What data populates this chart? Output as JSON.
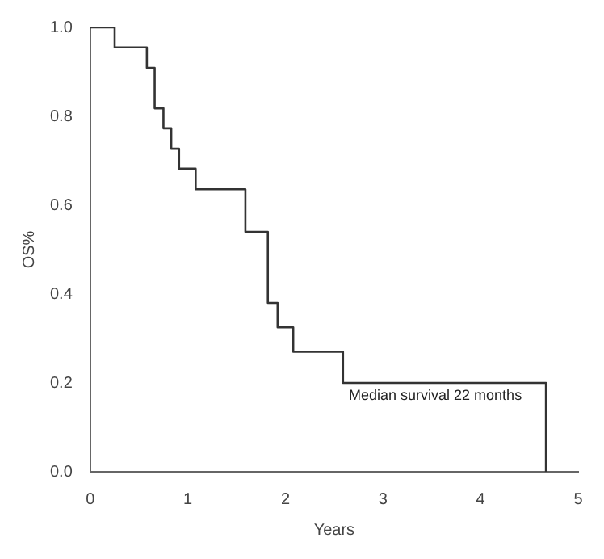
{
  "chart_data": {
    "type": "step",
    "xlabel": "Years",
    "ylabel": "OS%",
    "series": [
      {
        "color": "#333333",
        "x": [
          0,
          0.25,
          0.58,
          0.66,
          0.75,
          0.83,
          0.91,
          1.08,
          1.59,
          1.82,
          1.92,
          2.08,
          2.59,
          4.67,
          4.67
        ],
        "values": [
          1.0,
          0.955,
          0.909,
          0.818,
          0.773,
          0.727,
          0.682,
          0.636,
          0.54,
          0.38,
          0.325,
          0.27,
          0.2,
          0.2,
          0
        ]
      }
    ],
    "xlim": [
      0,
      5
    ],
    "xticks": [
      0,
      1,
      2,
      3,
      4,
      5
    ],
    "ylim": [
      0,
      1
    ],
    "yticks": [
      {
        "value": 0,
        "label": "0.0"
      },
      {
        "value": 0.2,
        "label": "0.2"
      },
      {
        "value": 0.4,
        "label": "0.4"
      },
      {
        "value": 0.6,
        "label": "0.6"
      },
      {
        "value": 0.8,
        "label": "0.8"
      },
      {
        "value": 1,
        "label": "1.0"
      }
    ],
    "annotations": [
      "Median survival 22 months"
    ],
    "grid": false,
    "legend": false
  }
}
